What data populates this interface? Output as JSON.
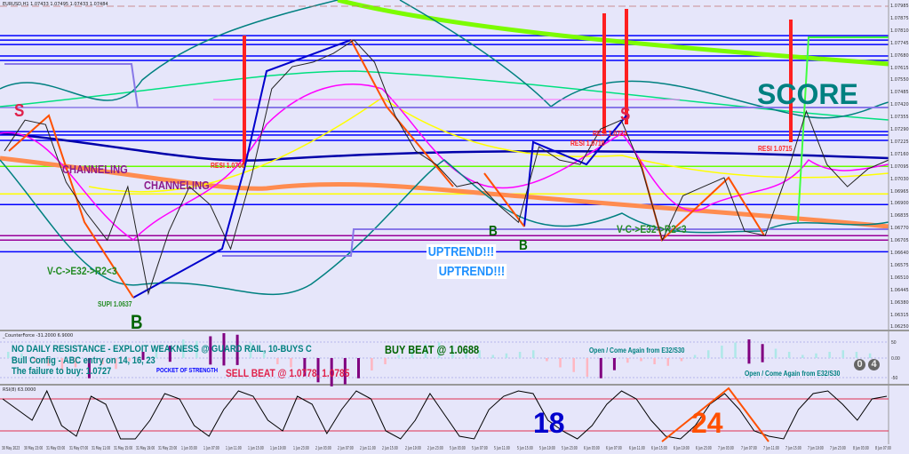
{
  "header": {
    "symbol": "EURUSD,H1",
    "ohlc": "1.07433 1.07495 1.07433 1.07484"
  },
  "indicator1_title": "_CounterForce -31.2000 6.9000",
  "indicator2_title": "RSI(8) 63.0000",
  "chart_data": {
    "type": "line",
    "title": "",
    "ylim": [
      1.0625,
      1.0799
    ],
    "grid": false,
    "price_ticks": [
      "1.07985",
      "1.07875",
      "1.07810",
      "1.07745",
      "1.07680",
      "1.07615",
      "1.07550",
      "1.07485",
      "1.07420",
      "1.07355",
      "1.07290",
      "1.07225",
      "1.07160",
      "1.07095",
      "1.07030",
      "1.06965",
      "1.06900",
      "1.06835",
      "1.06770",
      "1.06705",
      "1.06640",
      "1.06575",
      "1.06510",
      "1.06445",
      "1.06380",
      "1.06315",
      "1.06250"
    ],
    "time_ticks": [
      "30 May 2023",
      "30 May 23:00",
      "31 May 03:00",
      "31 May 07:00",
      "31 May 11:00",
      "31 May 15:00",
      "31 May 19:00",
      "31 May 23:00",
      "1 Jun 03:00",
      "1 Jun 07:00",
      "1 Jun 11:00",
      "1 Jun 15:00",
      "1 Jun 19:00",
      "1 Jun 23:00",
      "2 Jun 03:00",
      "2 Jun 07:00",
      "2 Jun 11:00",
      "2 Jun 15:00",
      "2 Jun 19:00",
      "2 Jun 23:00",
      "5 Jun 03:00",
      "5 Jun 07:00",
      "5 Jun 11:00",
      "5 Jun 15:00",
      "5 Jun 19:00",
      "5 Jun 23:00",
      "6 Jun 03:00",
      "6 Jun 07:00",
      "6 Jun 11:00",
      "6 Jun 15:00",
      "6 Jun 19:00",
      "6 Jun 23:00",
      "7 Jun 03:00",
      "7 Jun 07:00",
      "7 Jun 11:00",
      "7 Jun 15:00",
      "7 Jun 19:00",
      "7 Jun 23:00",
      "8 Jun 03:00",
      "8 Jun 07:00"
    ],
    "close": [
      1.07202,
      1.07369,
      1.07345,
      1.07033,
      1.06864,
      1.0672,
      1.07009,
      1.06431,
      1.06768,
      1.07009,
      1.06912,
      1.06672,
      1.07057,
      1.07538,
      1.07658,
      1.07682,
      1.0773,
      1.07802,
      1.07682,
      1.07393,
      1.07202,
      1.07129,
      1.07009,
      1.07033,
      1.06912,
      1.06816,
      1.07225,
      1.07153,
      1.07129,
      1.07321,
      1.07369,
      1.07105,
      1.0672,
      1.0696,
      1.07009,
      1.07057,
      1.06768,
      1.06744,
      1.07057,
      1.07417,
      1.07129,
      1.07009,
      1.07105,
      1.07153
    ],
    "levels": [
      {
        "price": 1.07826,
        "color": "#0000ff"
      },
      {
        "price": 1.07802,
        "color": "#0000ff"
      },
      {
        "price": 1.07778,
        "color": "#0000ff"
      },
      {
        "price": 1.07716,
        "color": "#0000ff"
      },
      {
        "price": 1.07692,
        "color": "#0000ff"
      },
      {
        "price": 1.07437,
        "color": "#8878e8"
      },
      {
        "price": 1.07307,
        "color": "#0000ff"
      },
      {
        "price": 1.07288,
        "color": "#0000ff"
      },
      {
        "price": 1.07259,
        "color": "#0000ff"
      },
      {
        "price": 1.07119,
        "color": "#66ff00"
      },
      {
        "price": 1.0697,
        "color": "#ffff00"
      },
      {
        "price": 1.06912,
        "color": "#0000ff"
      },
      {
        "price": 1.06744,
        "color": "#990099"
      },
      {
        "price": 1.0672,
        "color": "#990099"
      },
      {
        "price": 1.06657,
        "color": "#0000ff"
      }
    ],
    "histogram": {
      "ylim": [
        -100,
        100
      ],
      "ticks": [
        "50",
        "0.00",
        "-50"
      ],
      "values": [
        20,
        15,
        -10,
        -25,
        -40,
        -30,
        -50,
        -20,
        -35,
        -10,
        20,
        35,
        40,
        60,
        55,
        70,
        80,
        75,
        50,
        20,
        -20,
        -30,
        -45,
        -60,
        -70,
        -65,
        -50,
        -40,
        -20,
        10,
        30,
        45,
        50,
        40,
        30,
        25,
        10,
        15,
        20,
        25,
        -10,
        -30,
        -45,
        -60,
        -50,
        -30,
        -15,
        -10,
        -20,
        -25,
        -10,
        10,
        25,
        40,
        50,
        60,
        45,
        30,
        20,
        10,
        15,
        20,
        25,
        20,
        15
      ],
      "highlight": [
        6,
        10,
        12,
        15,
        16,
        17,
        22,
        23,
        24,
        25,
        26,
        44,
        45,
        55,
        56
      ]
    },
    "oscillator": {
      "ylim": [
        0,
        100
      ],
      "levels": [
        80,
        20
      ],
      "values": [
        80,
        60,
        40,
        95,
        30,
        10,
        85,
        70,
        5,
        5,
        40,
        90,
        80,
        30,
        10,
        60,
        95,
        85,
        40,
        20,
        85,
        70,
        15,
        60,
        95,
        80,
        20,
        5,
        40,
        90,
        50,
        10,
        5,
        60,
        85,
        95,
        90,
        40,
        20,
        5,
        30,
        70,
        95,
        80,
        40,
        10,
        5,
        30,
        70,
        90,
        60,
        20,
        10,
        5,
        60,
        90,
        95,
        70,
        40,
        80,
        85
      ]
    }
  },
  "annotations": {
    "s1": "S",
    "s2": "S",
    "b1": "B",
    "b2": "B",
    "b3": "B",
    "score": "SCORE",
    "channeling1": "CHANNELING",
    "channeling2": "CHANNELING",
    "resi1": "RESI 1.0706",
    "resi2": "RESI 1.0718",
    "resi3": "RESI 1.0724",
    "resi4": "RESI 1.0715",
    "vc1": "V-C->E32->R2<3",
    "vc2": "V-C->E32->R2<3",
    "supi": "SUPI 1.0637",
    "uptrend1": "UPTREND!!!",
    "uptrend2": "UPTREND!!!",
    "note1": "NO DAILY RESISTANCE - EXPLOIT WEAKNESS @ GUARD RAIL, 10-BUYS C",
    "note2": "Bull Config - ABC entry on 14, 16, 23",
    "note3": "The failure to buy: 1.0727",
    "pocket": "POCKET OF STRENGTH",
    "sell": "SELL BEAT @ 1.0778, 1.0785",
    "buy": "BUY BEAT @ 1.0688",
    "open1": "Open / Come Again from E32/S30",
    "open2": "Open / Come Again from E32/S30",
    "n18": "18",
    "n24": "24",
    "c0": "0",
    "c4": "4"
  }
}
